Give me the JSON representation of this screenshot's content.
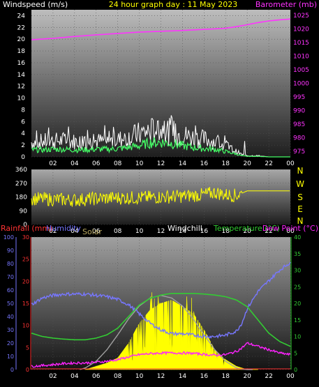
{
  "header": {
    "wind_label": "Windspeed (m/s)",
    "title": "24 hour graph day : 11 May 2023",
    "baro_label": "Barometer (mb)"
  },
  "compass": [
    "N",
    "W",
    "S",
    "E",
    "N"
  ],
  "bottom_labels": {
    "rainfall": "Rainfall (mm)",
    "humidity": "Humidity",
    "solar": "Solar",
    "windchill": "Windchill",
    "temperature": "Temperature (°C)",
    "dewpoint": "Dew Point (°C)"
  },
  "colors": {
    "wind_gust": "#ffffff",
    "wind_avg": "#44ff66",
    "barometer": "#ff33ff",
    "direction": "#ffff00",
    "rainfall": "#ff3333",
    "humidity": "#7777ff",
    "solar": "#ffff00",
    "solar_max": "#a0a0a0",
    "temperature": "#33cc33",
    "dewpoint": "#ff22ff"
  },
  "chart_data": [
    {
      "type": "line",
      "name": "wind-baro",
      "x_ticks": [
        "02",
        "04",
        "06",
        "08",
        "10",
        "12",
        "14",
        "16",
        "18",
        "20",
        "22",
        "00"
      ],
      "y_left_ticks": [
        0,
        2,
        4,
        6,
        8,
        10,
        12,
        14,
        16,
        18,
        20,
        22,
        24
      ],
      "y_left_range": [
        0,
        25
      ],
      "y_right_ticks": [
        975,
        980,
        985,
        990,
        995,
        1000,
        1005,
        1010,
        1015,
        1020,
        1025
      ],
      "y_right_range": [
        973,
        1027
      ],
      "series": [
        {
          "key": "gust",
          "x": [
            0,
            1,
            2,
            3,
            4,
            5,
            6,
            7,
            8,
            9,
            10,
            11,
            12,
            13,
            14,
            15,
            16,
            17,
            18,
            19,
            19.5,
            20,
            21,
            22,
            23,
            24
          ],
          "values": [
            2.5,
            2.6,
            2.7,
            2.8,
            2.6,
            2.5,
            2.7,
            2.6,
            2.9,
            3.3,
            3.9,
            4.4,
            4.6,
            4.2,
            3.7,
            3.3,
            3.0,
            2.6,
            1.9,
            0.9,
            0.4,
            0.2,
            0.2,
            0,
            0,
            0
          ]
        },
        {
          "key": "avg",
          "x": [
            0,
            1,
            2,
            3,
            4,
            5,
            6,
            7,
            8,
            9,
            10,
            11,
            12,
            13,
            14,
            15,
            16,
            17,
            18,
            19,
            19.5,
            20,
            21,
            22,
            23,
            24
          ],
          "values": [
            1.2,
            1.2,
            1.3,
            1.3,
            1.2,
            1.2,
            1.3,
            1.3,
            1.4,
            1.6,
            1.9,
            2.4,
            2.5,
            2.3,
            1.9,
            1.6,
            1.4,
            1.3,
            0.9,
            0.5,
            0.2,
            0.1,
            0.1,
            0,
            0,
            0
          ]
        },
        {
          "key": "barometer",
          "x": [
            0,
            2,
            4,
            6,
            8,
            10,
            12,
            14,
            16,
            18,
            19,
            20,
            21,
            22,
            23,
            24
          ],
          "values": [
            1016,
            1016.5,
            1017.2,
            1017.8,
            1018.3,
            1018.8,
            1019.1,
            1019.4,
            1019.8,
            1020.2,
            1020.8,
            1021.5,
            1022.3,
            1022.9,
            1023.3,
            1023.6
          ]
        }
      ]
    },
    {
      "type": "line",
      "name": "wind-direction",
      "x_ticks": [
        "02",
        "04",
        "06",
        "08",
        "10",
        "12",
        "14",
        "16",
        "18",
        "20",
        "22",
        "00"
      ],
      "y_ticks": [
        0,
        90,
        180,
        270,
        360
      ],
      "y_range": [
        0,
        360
      ],
      "series": [
        {
          "key": "direction",
          "x": [
            0,
            2,
            4,
            6,
            8,
            10,
            12,
            14,
            16,
            17,
            18,
            19,
            20,
            21,
            22,
            23,
            24
          ],
          "values": [
            170,
            165,
            160,
            170,
            175,
            175,
            180,
            185,
            195,
            210,
            195,
            190,
            220,
            220,
            220,
            220,
            220
          ]
        }
      ]
    },
    {
      "type": "line",
      "name": "temp-humidity-solar",
      "x_ticks": [
        "02",
        "04",
        "06",
        "08",
        "10",
        "12",
        "14",
        "16",
        "18",
        "20",
        "22",
        "00"
      ],
      "y_rain_ticks": [
        0,
        5,
        10,
        15,
        20,
        25,
        30
      ],
      "y_rain_range": [
        0,
        30
      ],
      "y_humidity_ticks": [
        0,
        10,
        20,
        30,
        40,
        50,
        60,
        70,
        80,
        90,
        100
      ],
      "y_humidity_range": [
        0,
        100
      ],
      "y_temp_ticks": [
        0,
        5,
        10,
        15,
        20,
        25,
        30,
        35,
        40
      ],
      "y_temp_range": [
        0,
        40
      ],
      "series": [
        {
          "key": "humidity",
          "x": [
            0,
            1,
            2,
            3,
            4,
            5,
            6,
            7,
            8,
            9,
            10,
            11,
            12,
            13,
            14,
            15,
            16,
            17,
            18,
            19,
            19.5,
            20,
            21,
            22,
            23,
            24
          ],
          "values": [
            49,
            54,
            56,
            57,
            57,
            57,
            56,
            55,
            53,
            49,
            42,
            35,
            30,
            27,
            27,
            26,
            25,
            25,
            26,
            29,
            35,
            46,
            59,
            67,
            75,
            81
          ]
        },
        {
          "key": "temperature",
          "x": [
            0,
            1,
            2,
            3,
            4,
            5,
            6,
            7,
            8,
            9,
            10,
            11,
            12,
            13,
            14,
            15,
            16,
            17,
            18,
            19,
            20,
            21,
            22,
            23,
            24
          ],
          "values": [
            11,
            10,
            9.5,
            9.2,
            9,
            9,
            9.5,
            10.5,
            12.5,
            16,
            19.5,
            21.5,
            22.5,
            23,
            23,
            23,
            22.8,
            22.5,
            22,
            21,
            19,
            15,
            11,
            8.5,
            7
          ]
        },
        {
          "key": "dewpoint",
          "x": [
            0,
            1,
            2,
            3,
            4,
            5,
            6,
            7,
            8,
            9,
            10,
            11,
            12,
            13,
            14,
            15,
            16,
            17,
            18,
            19,
            19.5,
            20,
            21,
            22,
            23,
            24
          ],
          "values": [
            1,
            1.2,
            1.5,
            1.8,
            2,
            2,
            2.2,
            2.5,
            3,
            3.8,
            4.5,
            4.8,
            5,
            5,
            5,
            4.9,
            4.6,
            4.3,
            4.5,
            5.5,
            6.5,
            8,
            7,
            6,
            5,
            4.5
          ]
        },
        {
          "key": "solar_max",
          "x": [
            4.5,
            5,
            6,
            7,
            8,
            9,
            10,
            11,
            12,
            13,
            14,
            15,
            16,
            17,
            18,
            19,
            19.5,
            20,
            20.5
          ],
          "values": [
            0,
            0.5,
            2.5,
            6,
            10.5,
            15.3,
            19.2,
            21.6,
            22.4,
            21.6,
            19.2,
            15.3,
            10.5,
            6,
            2.5,
            0.5,
            0.1,
            0,
            0
          ]
        },
        {
          "key": "solar",
          "x": [
            5,
            6,
            7,
            8,
            9,
            10,
            11,
            12,
            13,
            14,
            15,
            16,
            17,
            18,
            19,
            20,
            21
          ],
          "values": [
            0,
            1,
            2,
            3.5,
            8,
            14,
            18,
            20,
            21,
            19,
            17,
            12,
            6,
            3,
            1,
            0,
            0
          ]
        }
      ]
    }
  ]
}
